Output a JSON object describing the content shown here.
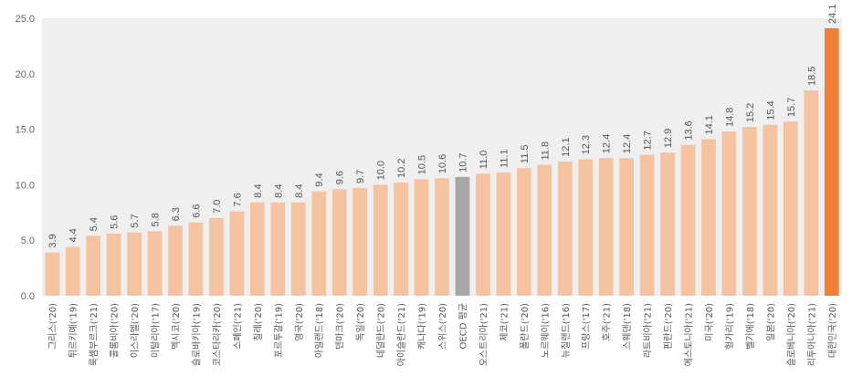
{
  "chart_data": {
    "type": "bar",
    "title": "",
    "xlabel": "",
    "ylabel": "",
    "ylim": [
      0,
      25
    ],
    "yticks": [
      "0.0",
      "5.0",
      "10.0",
      "15.0",
      "20.0",
      "25.0"
    ],
    "grid": false,
    "categories": [
      "그리스('20)",
      "튀르키예('19)",
      "룩셈부르크('21)",
      "콜롬비아('20)",
      "이스라엘('20)",
      "이탈리아('17)",
      "멕시코('20)",
      "슬로바키아('19)",
      "코스타리카('20)",
      "스페인('21)",
      "칠레('20)",
      "포르투갈('19)",
      "영국('20)",
      "아일랜드('18)",
      "덴마크('20)",
      "독일('20)",
      "네덜란드('20)",
      "아이슬란드('21)",
      "캐나다('19)",
      "스위스('20)",
      "OECD 평균",
      "오스트리아('21)",
      "체코('21)",
      "폴란드('20)",
      "노르웨이('16)",
      "뉴질랜드('16)",
      "프랑스('17)",
      "호주('21)",
      "스웨덴('18)",
      "라트비아('21)",
      "핀란드('20)",
      "에스토니아('21)",
      "미국('20)",
      "헝가리('19)",
      "벨기에('18)",
      "일본('20)",
      "슬로베니아('20)",
      "리투아니아('21)",
      "대한민국('20)"
    ],
    "values": [
      3.9,
      4.4,
      5.4,
      5.6,
      5.7,
      5.8,
      6.3,
      6.6,
      7.0,
      7.6,
      8.4,
      8.4,
      8.4,
      9.4,
      9.6,
      9.7,
      10.0,
      10.2,
      10.5,
      10.6,
      10.7,
      11.0,
      11.1,
      11.5,
      11.8,
      12.1,
      12.3,
      12.4,
      12.4,
      12.7,
      12.9,
      13.6,
      14.1,
      14.8,
      15.2,
      15.4,
      15.7,
      18.5,
      24.1
    ],
    "value_labels": [
      "3.9",
      "4.4",
      "5.4",
      "5.6",
      "5.7",
      "5.8",
      "6.3",
      "6.6",
      "7.0",
      "7.6",
      "8.4",
      "8.4",
      "8.4",
      "9.4",
      "9.6",
      "9.7",
      "10.0",
      "10.2",
      "10.5",
      "10.6",
      "10.7",
      "11.0",
      "11.1",
      "11.5",
      "11.8",
      "12.1",
      "12.3",
      "12.4",
      "12.4",
      "12.7",
      "12.9",
      "13.6",
      "14.1",
      "14.8",
      "15.2",
      "15.4",
      "15.7",
      "18.5",
      "24.1"
    ],
    "colors": {
      "default": "#f6c3a1",
      "oecd": "#a8a8a8",
      "highlight": "#ee7f33",
      "highlight_label": "#ee7f33",
      "plot_bg": "#efefef"
    },
    "highlight_index": 38,
    "oecd_index": 20
  }
}
